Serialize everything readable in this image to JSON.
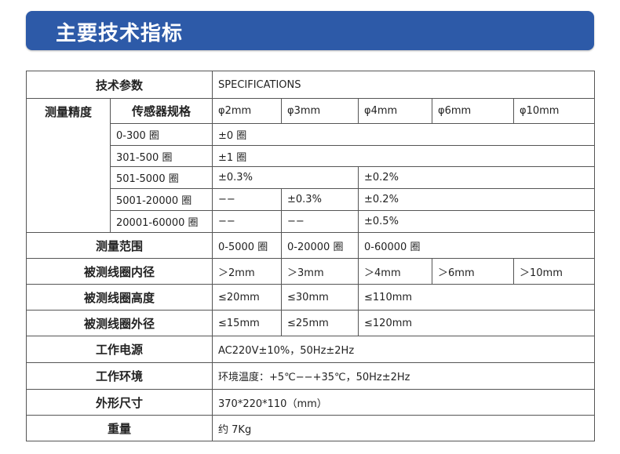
{
  "header": {
    "title": "主要技术指标"
  },
  "table": {
    "rows": [
      [
        {
          "t": "技术参数",
          "span": 2,
          "bold": true
        },
        {
          "t": "SPECIFICATIONS",
          "span": 5
        }
      ],
      [
        {
          "t": "测量精度",
          "bold": true,
          "rowspan": 6,
          "top": true
        },
        {
          "t": "传感器规格",
          "bold": true
        },
        {
          "t": "φ2mm"
        },
        {
          "t": "φ3mm"
        },
        {
          "t": "φ4mm"
        },
        {
          "t": "φ6mm"
        },
        {
          "t": "φ10mm"
        }
      ],
      [
        {
          "t": "0-300 圈"
        },
        {
          "t": "±0 圈",
          "span": 5
        }
      ],
      [
        {
          "t": "301-500 圈"
        },
        {
          "t": "±1 圈",
          "span": 5
        }
      ],
      [
        {
          "t": "501-5000 圈"
        },
        {
          "t": "±0.3%",
          "span": 2
        },
        {
          "t": "±0.2%",
          "span": 3
        }
      ],
      [
        {
          "t": "5001-20000 圈"
        },
        {
          "t": "−−"
        },
        {
          "t": "±0.3%"
        },
        {
          "t": "±0.2%",
          "span": 3
        }
      ],
      [
        {
          "t": "20001-60000 圈"
        },
        {
          "t": "−−"
        },
        {
          "t": "−−"
        },
        {
          "t": "±0.5%",
          "span": 3
        }
      ],
      [
        {
          "t": "测量范围",
          "span": 2,
          "bold": true
        },
        {
          "t": "0-5000 圈"
        },
        {
          "t": "0-20000 圈"
        },
        {
          "t": "0-60000 圈",
          "span": 3
        }
      ],
      [
        {
          "t": "被测线圈内径",
          "span": 2,
          "bold": true
        },
        {
          "t": "＞2mm"
        },
        {
          "t": "＞3mm"
        },
        {
          "t": "＞4mm"
        },
        {
          "t": "＞6mm"
        },
        {
          "t": "＞10mm"
        }
      ],
      [
        {
          "t": "被测线圈高度",
          "span": 2,
          "bold": true
        },
        {
          "t": "≤20mm"
        },
        {
          "t": "≤30mm"
        },
        {
          "t": "≤110mm",
          "span": 3
        }
      ],
      [
        {
          "t": "被测线圈外径",
          "span": 2,
          "bold": true
        },
        {
          "t": "≤15mm"
        },
        {
          "t": "≤25mm"
        },
        {
          "t": "≤120mm",
          "span": 3
        }
      ],
      [
        {
          "t": "工作电源",
          "span": 2,
          "bold": true
        },
        {
          "t": "AC220V±10%，50Hz±2Hz",
          "span": 5
        }
      ],
      [
        {
          "t": "工作环境",
          "span": 2,
          "bold": true
        },
        {
          "t": "环境温度：+5℃−−+35℃，50Hz±2Hz",
          "span": 5
        }
      ],
      [
        {
          "t": "外形尺寸",
          "span": 2,
          "bold": true
        },
        {
          "t": "370*220*110（mm）",
          "span": 5
        }
      ],
      [
        {
          "t": "重量",
          "span": 2,
          "bold": true
        },
        {
          "t": "约 7Kg",
          "span": 5
        }
      ]
    ]
  }
}
